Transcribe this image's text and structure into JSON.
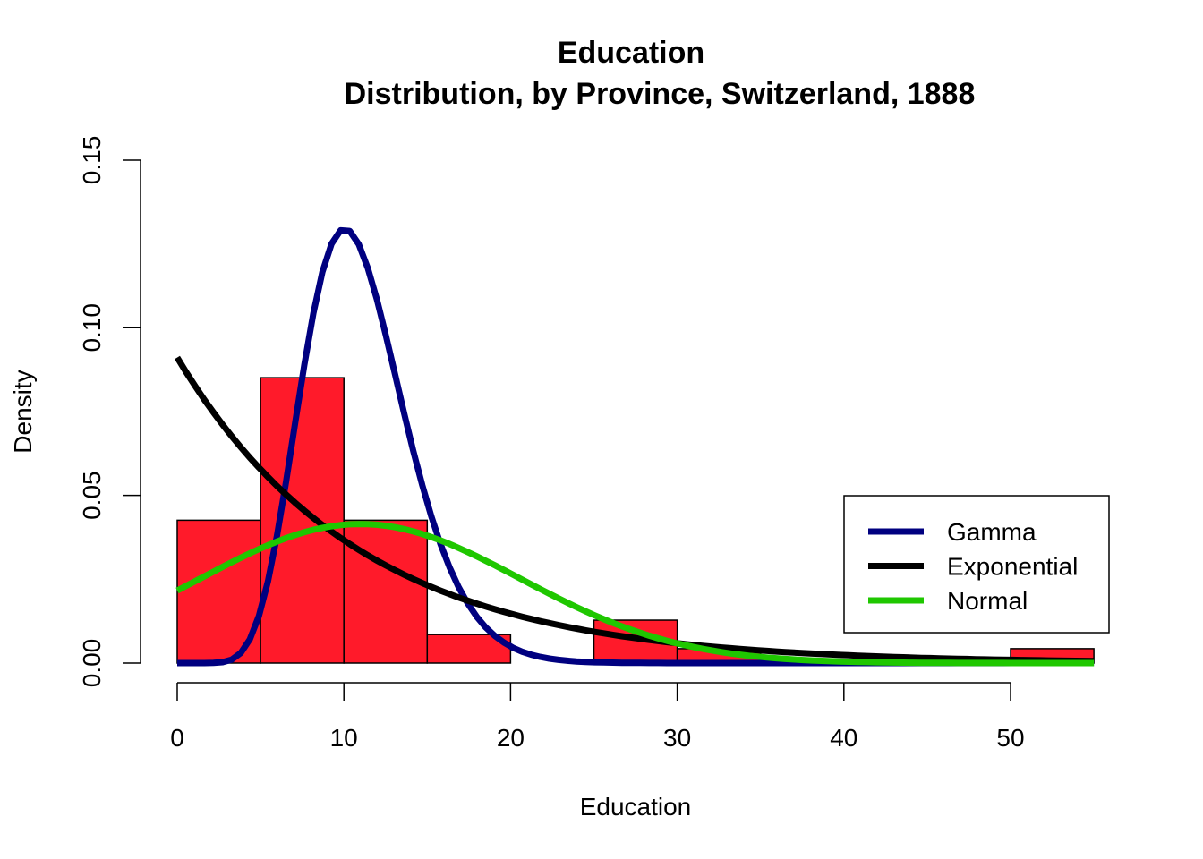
{
  "chart_data": {
    "type": "bar",
    "title": "Education",
    "subtitle": "Distribution, by Province, Switzerland, 1888",
    "xlabel": "Education",
    "ylabel": "Density",
    "xlim": [
      0,
      55
    ],
    "ylim": [
      0,
      0.15
    ],
    "xticks": [
      0,
      10,
      20,
      30,
      40,
      50
    ],
    "xtick_labels": [
      "0",
      "10",
      "20",
      "30",
      "40",
      "50"
    ],
    "yticks": [
      0,
      0.05,
      0.1,
      0.15
    ],
    "ytick_labels": [
      "0.00",
      "0.05",
      "0.10",
      "0.15"
    ],
    "histogram": {
      "bin_edges": [
        0,
        5,
        10,
        15,
        20,
        25,
        30,
        35,
        40,
        45,
        50,
        55
      ],
      "density": [
        0.0426,
        0.0851,
        0.0426,
        0.0085,
        0,
        0.0128,
        0.0043,
        0,
        0,
        0,
        0.0043
      ],
      "color": "#FF1A2A"
    },
    "series": [
      {
        "name": "Gamma",
        "dist": "gamma",
        "shape": 11.8,
        "rate": 1.075,
        "color": "#000080"
      },
      {
        "name": "Exponential",
        "dist": "exponential",
        "rate": 0.0911,
        "color": "#000000"
      },
      {
        "name": "Normal",
        "dist": "normal",
        "mean": 10.98,
        "sd": 9.62,
        "color": "#1FC700"
      }
    ],
    "legend_position": "right"
  }
}
